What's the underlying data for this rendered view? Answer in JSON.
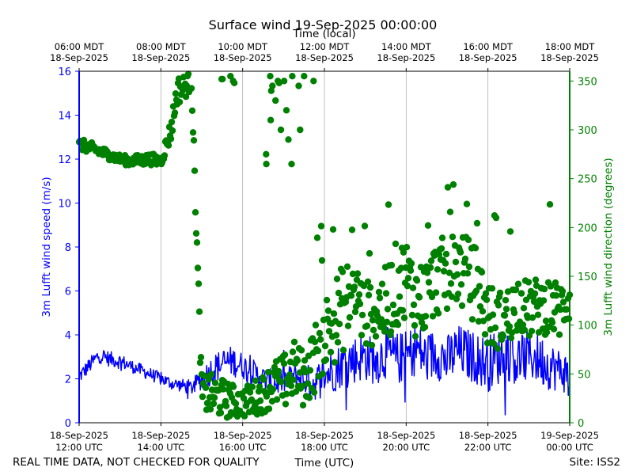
{
  "chart_data": {
    "type": "line+scatter",
    "title": "Surface wind 19-Sep-2025 00:00:00",
    "top_axis_label": "Time (local)",
    "xlabel": "Time (UTC)",
    "ylabel_left": "3m Lufft wind speed (m/s)",
    "ylabel_right": "3m Lufft wind direction (degrees)",
    "x_range_hours_utc": [
      12,
      24
    ],
    "ylim_left": [
      0,
      16
    ],
    "ylim_right": [
      0,
      360
    ],
    "grid": "vertical",
    "colors": {
      "speed": "#0000ff",
      "direction": "#008000"
    },
    "x_ticks_bottom": [
      {
        "h": 12,
        "date": "18-Sep-2025",
        "time": "12:00 UTC"
      },
      {
        "h": 14,
        "date": "18-Sep-2025",
        "time": "14:00 UTC"
      },
      {
        "h": 16,
        "date": "18-Sep-2025",
        "time": "16:00 UTC"
      },
      {
        "h": 18,
        "date": "18-Sep-2025",
        "time": "18:00 UTC"
      },
      {
        "h": 20,
        "date": "18-Sep-2025",
        "time": "20:00 UTC"
      },
      {
        "h": 22,
        "date": "18-Sep-2025",
        "time": "22:00 UTC"
      },
      {
        "h": 24,
        "date": "19-Sep-2025",
        "time": "00:00 UTC"
      }
    ],
    "x_ticks_top": [
      {
        "h": 12,
        "time": "06:00 MDT",
        "date": "18-Sep-2025"
      },
      {
        "h": 14,
        "time": "08:00 MDT",
        "date": "18-Sep-2025"
      },
      {
        "h": 16,
        "time": "10:00 MDT",
        "date": "18-Sep-2025"
      },
      {
        "h": 18,
        "time": "12:00 MDT",
        "date": "18-Sep-2025"
      },
      {
        "h": 20,
        "time": "14:00 MDT",
        "date": "18-Sep-2025"
      },
      {
        "h": 22,
        "time": "16:00 MDT",
        "date": "18-Sep-2025"
      },
      {
        "h": 24,
        "time": "18:00 MDT",
        "date": "18-Sep-2025"
      }
    ],
    "y_ticks_left": [
      "0",
      "2",
      "4",
      "6",
      "8",
      "10",
      "12",
      "14",
      "16"
    ],
    "y_ticks_right": [
      "0",
      "50",
      "100",
      "150",
      "200",
      "250",
      "300",
      "350"
    ],
    "speed_series": {
      "name": "3m Lufft wind speed",
      "x": [
        12.0,
        12.25,
        12.5,
        12.75,
        13.0,
        13.25,
        13.5,
        13.75,
        14.0,
        14.25,
        14.5,
        14.75,
        15.0,
        15.25,
        15.5,
        15.75,
        16.0,
        16.25,
        16.5,
        16.75,
        17.0,
        17.25,
        17.5,
        17.75,
        18.0,
        18.25,
        18.5,
        18.75,
        19.0,
        19.25,
        19.5,
        19.75,
        20.0,
        20.25,
        20.5,
        20.75,
        21.0,
        21.25,
        21.5,
        21.75,
        22.0,
        22.25,
        22.5,
        22.75,
        23.0,
        23.25,
        23.5,
        23.75,
        24.0
      ],
      "values": [
        2.1,
        2.6,
        3.1,
        2.9,
        2.8,
        2.6,
        2.4,
        2.2,
        2.0,
        1.8,
        1.7,
        1.6,
        2.0,
        2.4,
        2.7,
        2.8,
        2.6,
        2.3,
        2.0,
        1.8,
        1.9,
        2.1,
        2.0,
        1.8,
        2.2,
        2.4,
        2.8,
        2.9,
        3.0,
        2.8,
        3.2,
        2.9,
        3.0,
        3.4,
        2.9,
        3.2,
        2.8,
        3.3,
        3.1,
        2.9,
        2.7,
        3.0,
        3.2,
        2.8,
        3.1,
        2.9,
        2.6,
        2.4,
        2.2
      ],
      "noise_amplitude": [
        0.35,
        0.35,
        0.4,
        0.35,
        0.35,
        0.3,
        0.3,
        0.3,
        0.3,
        0.3,
        0.3,
        0.35,
        0.5,
        0.7,
        0.7,
        0.7,
        0.6,
        0.6,
        0.6,
        0.6,
        0.6,
        0.6,
        0.7,
        0.8,
        0.9,
        1.0,
        1.1,
        1.1,
        1.1,
        1.1,
        1.2,
        1.2,
        1.2,
        1.2,
        1.2,
        1.2,
        1.2,
        1.2,
        1.2,
        1.2,
        1.3,
        1.3,
        1.3,
        1.3,
        1.2,
        1.2,
        1.1,
        1.0,
        0.9
      ]
    },
    "direction_series": {
      "name": "3m Lufft wind direction",
      "x": [
        12.0,
        12.25,
        12.5,
        12.75,
        13.0,
        13.25,
        13.5,
        13.75,
        14.0,
        14.25,
        14.4,
        14.6,
        14.75,
        15.0,
        15.25,
        15.5,
        15.75,
        16.0,
        16.25,
        16.5,
        16.75,
        17.0,
        17.25,
        17.5,
        17.75,
        18.0,
        18.25,
        18.5,
        18.75,
        19.0,
        19.25,
        19.5,
        19.75,
        20.0,
        20.25,
        20.5,
        20.75,
        21.0,
        21.25,
        21.5,
        21.75,
        22.0,
        22.25,
        22.5,
        22.75,
        23.0,
        23.25,
        23.5,
        23.75,
        24.0
      ],
      "values": [
        285,
        282,
        278,
        274,
        270,
        268,
        269,
        270,
        268,
        300,
        340,
        345,
        350,
        30,
        28,
        25,
        22,
        20,
        25,
        30,
        40,
        40,
        55,
        45,
        65,
        90,
        105,
        120,
        135,
        110,
        115,
        120,
        140,
        150,
        125,
        130,
        150,
        150,
        160,
        150,
        140,
        110,
        105,
        110,
        125,
        115,
        120,
        120,
        115,
        130
      ],
      "spread": [
        6,
        6,
        6,
        5,
        5,
        5,
        6,
        6,
        6,
        12,
        15,
        12,
        10,
        20,
        22,
        20,
        18,
        15,
        18,
        20,
        25,
        30,
        30,
        30,
        35,
        40,
        45,
        45,
        40,
        35,
        35,
        40,
        45,
        40,
        40,
        40,
        40,
        40,
        40,
        40,
        40,
        35,
        30,
        30,
        30,
        30,
        30,
        30,
        30,
        30
      ],
      "high_cluster": [
        {
          "x": 15.7,
          "values": [
            352,
            355,
            350,
            348,
            352
          ]
        },
        {
          "x": 16.7,
          "values": [
            330,
            345,
            348,
            350,
            355,
            340,
            275,
            265,
            300,
            310
          ]
        },
        {
          "x": 17.2,
          "values": [
            350,
            355,
            345,
            300,
            290,
            320,
            265
          ]
        },
        {
          "x": 17.5,
          "values": [
            355,
            350
          ]
        }
      ]
    }
  },
  "footer": {
    "left_note": "REAL TIME DATA, NOT CHECKED FOR QUALITY",
    "site": "Site: ISS2"
  }
}
